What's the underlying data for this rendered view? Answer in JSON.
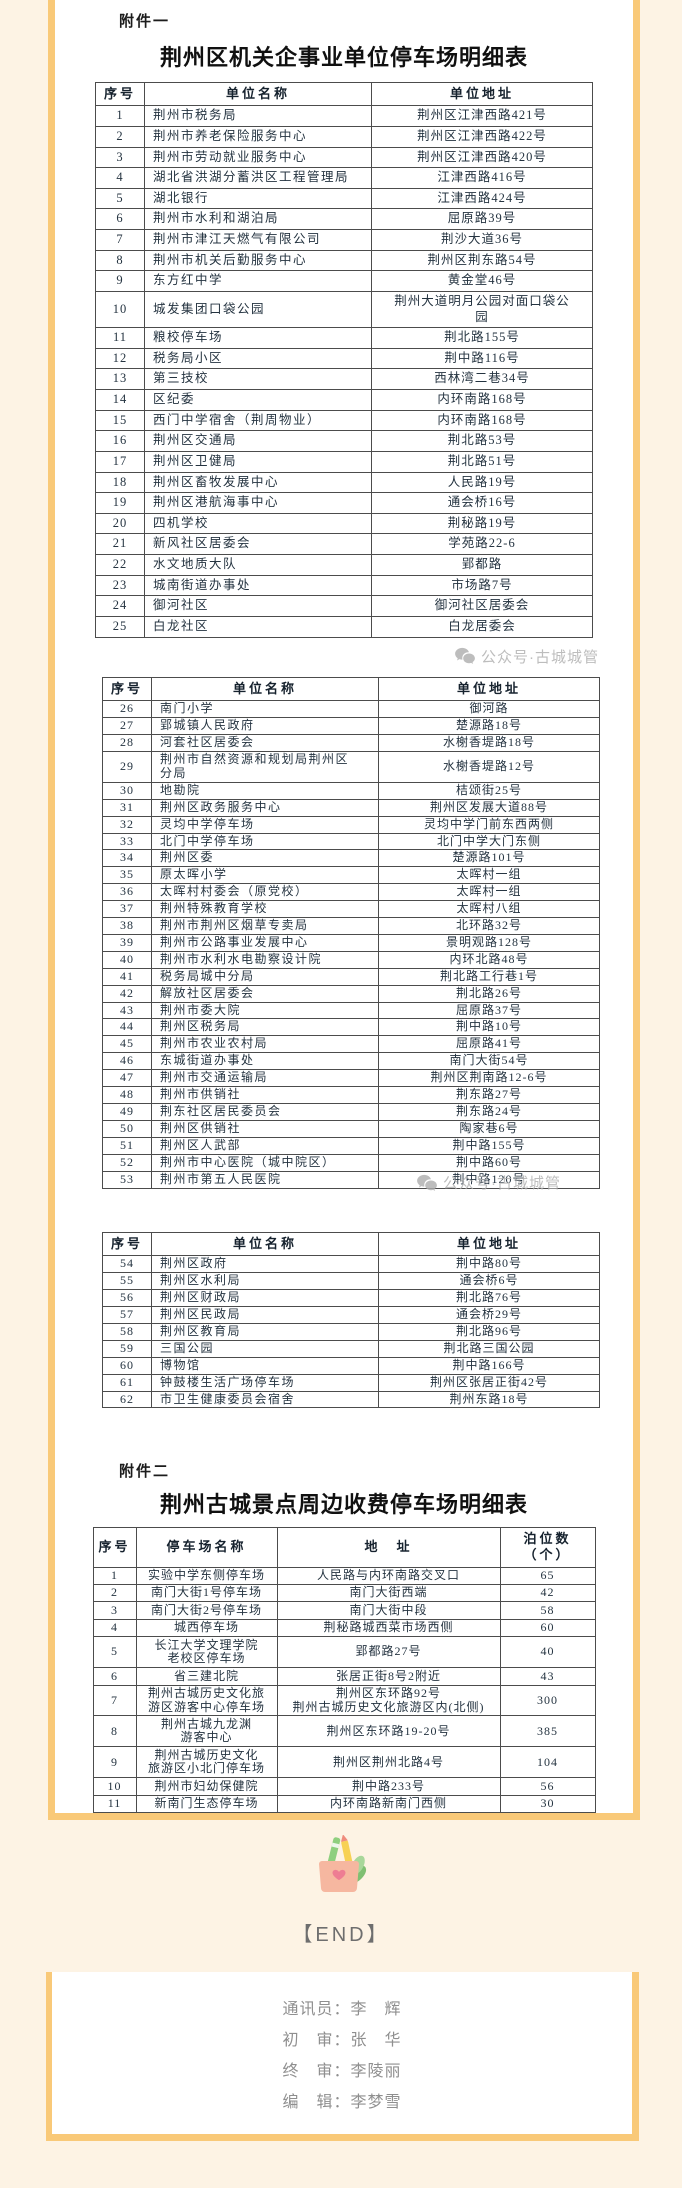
{
  "page": {
    "attachment1_label": "附件一",
    "attachment2_label": "附件二",
    "watermark_text": "公众号·古城城管",
    "watermark_icon": "wechat-icon",
    "end_marker": "【END】",
    "end_icon": "pencil-cup-icon",
    "credits": {
      "line1": "通讯员：李　辉",
      "line2": "初　审：张　华",
      "line3": "终　审：李陵丽",
      "line4": "编　辑：李梦雪"
    },
    "colors": {
      "accent_yellow": "#f9c978",
      "cream_background": "#fdf3e4",
      "card_background": "#ffffff",
      "table_border": "#4c4c4c",
      "body_text": "#243340",
      "watermark_gray": "#adadad"
    }
  },
  "unit_table": {
    "title": "荆州区机关企事业单位停车场明细表",
    "headers": [
      "序号",
      "单位名称",
      "单位地址"
    ],
    "segments": [
      {
        "rows": [
          {
            "no": "1",
            "name": "荆州市税务局",
            "addr": "荆州区江津西路421号"
          },
          {
            "no": "2",
            "name": "荆州市养老保险服务中心",
            "addr": "荆州区江津西路422号"
          },
          {
            "no": "3",
            "name": "荆州市劳动就业服务中心",
            "addr": "荆州区江津西路420号"
          },
          {
            "no": "4",
            "name": "湖北省洪湖分蓄洪区工程管理局",
            "addr": "江津西路416号"
          },
          {
            "no": "5",
            "name": "湖北银行",
            "addr": "江津西路424号"
          },
          {
            "no": "6",
            "name": "荆州市水利和湖泊局",
            "addr": "屈原路39号"
          },
          {
            "no": "7",
            "name": "荆州市津江天燃气有限公司",
            "addr": "荆沙大道36号"
          },
          {
            "no": "8",
            "name": "荆州市机关后勤服务中心",
            "addr": "荆州区荆东路54号"
          },
          {
            "no": "9",
            "name": "东方红中学",
            "addr": "黄金堂46号"
          },
          {
            "no": "10",
            "name": "城发集团口袋公园",
            "addr": "荆州大道明月公园对面口袋公\n园"
          },
          {
            "no": "11",
            "name": "粮校停车场",
            "addr": "荆北路155号"
          },
          {
            "no": "12",
            "name": "税务局小区",
            "addr": "荆中路116号"
          },
          {
            "no": "13",
            "name": "第三技校",
            "addr": "西林湾二巷34号"
          },
          {
            "no": "14",
            "name": "区纪委",
            "addr": "内环南路168号"
          },
          {
            "no": "15",
            "name": "西门中学宿舍（荆周物业）",
            "addr": "内环南路168号"
          },
          {
            "no": "16",
            "name": "荆州区交通局",
            "addr": "荆北路53号"
          },
          {
            "no": "17",
            "name": "荆州区卫健局",
            "addr": "荆北路51号"
          },
          {
            "no": "18",
            "name": "荆州区畜牧发展中心",
            "addr": "人民路19号"
          },
          {
            "no": "19",
            "name": "荆州区港航海事中心",
            "addr": "通会桥16号"
          },
          {
            "no": "20",
            "name": "四机学校",
            "addr": "荆秘路19号"
          },
          {
            "no": "21",
            "name": "新风社区居委会",
            "addr": "学苑路22-6"
          },
          {
            "no": "22",
            "name": "水文地质大队",
            "addr": "郢都路"
          },
          {
            "no": "23",
            "name": "城南街道办事处",
            "addr": "市场路7号"
          },
          {
            "no": "24",
            "name": "御河社区",
            "addr": "御河社区居委会"
          },
          {
            "no": "25",
            "name": "白龙社区",
            "addr": "白龙居委会"
          }
        ]
      },
      {
        "rows": [
          {
            "no": "26",
            "name": "南门小学",
            "addr": "御河路"
          },
          {
            "no": "27",
            "name": "郢城镇人民政府",
            "addr": "楚源路18号"
          },
          {
            "no": "28",
            "name": "河套社区居委会",
            "addr": "水榭香堤路18号"
          },
          {
            "no": "29",
            "name": "荆州市自然资源和规划局荆州区\n分局",
            "addr": "水榭香堤路12号"
          },
          {
            "no": "30",
            "name": "地勘院",
            "addr": "桔颂街25号"
          },
          {
            "no": "31",
            "name": "荆州区政务服务中心",
            "addr": "荆州区发展大道88号"
          },
          {
            "no": "32",
            "name": "灵均中学停车场",
            "addr": "灵均中学门前东西两侧"
          },
          {
            "no": "33",
            "name": "北门中学停车场",
            "addr": "北门中学大门东侧"
          },
          {
            "no": "34",
            "name": "荆州区委",
            "addr": "楚源路101号"
          },
          {
            "no": "35",
            "name": "原太晖小学",
            "addr": "太晖村一组"
          },
          {
            "no": "36",
            "name": "太晖村村委会（原党校）",
            "addr": "太晖村一组"
          },
          {
            "no": "37",
            "name": "荆州特殊教育学校",
            "addr": "太晖村八组"
          },
          {
            "no": "38",
            "name": "荆州市荆州区烟草专卖局",
            "addr": "北环路32号"
          },
          {
            "no": "39",
            "name": "荆州市公路事业发展中心",
            "addr": "景明观路128号"
          },
          {
            "no": "40",
            "name": "荆州市水利水电勘察设计院",
            "addr": "内环北路48号"
          },
          {
            "no": "41",
            "name": "税务局城中分局",
            "addr": "荆北路工行巷1号"
          },
          {
            "no": "42",
            "name": "解放社区居委会",
            "addr": "荆北路26号"
          },
          {
            "no": "43",
            "name": "荆州市委大院",
            "addr": "屈原路37号"
          },
          {
            "no": "44",
            "name": "荆州区税务局",
            "addr": "荆中路10号"
          },
          {
            "no": "45",
            "name": "荆州市农业农村局",
            "addr": "屈原路41号"
          },
          {
            "no": "46",
            "name": "东城街道办事处",
            "addr": "南门大街54号"
          },
          {
            "no": "47",
            "name": "荆州市交通运输局",
            "addr": "荆州区荆南路12-6号"
          },
          {
            "no": "48",
            "name": "荆州市供销社",
            "addr": "荆东路27号"
          },
          {
            "no": "49",
            "name": "荆东社区居民委员会",
            "addr": "荆东路24号"
          },
          {
            "no": "50",
            "name": "荆州区供销社",
            "addr": "陶家巷6号"
          },
          {
            "no": "51",
            "name": "荆州区人武部",
            "addr": "荆中路155号"
          },
          {
            "no": "52",
            "name": "荆州市中心医院（城中院区）",
            "addr": "荆中路60号"
          },
          {
            "no": "53",
            "name": "荆州市第五人民医院",
            "addr": "荆中路120号"
          }
        ]
      },
      {
        "rows": [
          {
            "no": "54",
            "name": "荆州区政府",
            "addr": "荆中路80号"
          },
          {
            "no": "55",
            "name": "荆州区水利局",
            "addr": "通会桥6号"
          },
          {
            "no": "56",
            "name": "荆州区财政局",
            "addr": "荆北路76号"
          },
          {
            "no": "57",
            "name": "荆州区民政局",
            "addr": "通会桥29号"
          },
          {
            "no": "58",
            "name": "荆州区教育局",
            "addr": "荆北路96号"
          },
          {
            "no": "59",
            "name": "三国公园",
            "addr": "荆北路三国公园"
          },
          {
            "no": "60",
            "name": "博物馆",
            "addr": "荆中路166号"
          },
          {
            "no": "61",
            "name": "钟鼓楼生活广场停车场",
            "addr": "荆州区张居正街42号"
          },
          {
            "no": "62",
            "name": "市卫生健康委员会宿舍",
            "addr": "荆州东路18号"
          }
        ]
      }
    ]
  },
  "paid_table": {
    "title": "荆州古城景点周边收费停车场明细表",
    "headers": [
      "序号",
      "停车场名称",
      "地　址",
      "泊位数\n（个）"
    ],
    "rows": [
      {
        "no": "1",
        "name": "实验中学东侧停车场",
        "addr": "人民路与内环南路交叉口",
        "spots": "65"
      },
      {
        "no": "2",
        "name": "南门大街1号停车场",
        "addr": "南门大街西端",
        "spots": "42"
      },
      {
        "no": "3",
        "name": "南门大街2号停车场",
        "addr": "南门大街中段",
        "spots": "58"
      },
      {
        "no": "4",
        "name": "城西停车场",
        "addr": "荆秘路城西菜市场西侧",
        "spots": "60"
      },
      {
        "no": "5",
        "name": "长江大学文理学院\n老校区停车场",
        "addr": "郢都路27号",
        "spots": "40"
      },
      {
        "no": "6",
        "name": "省三建北院",
        "addr": "张居正街8号2附近",
        "spots": "43"
      },
      {
        "no": "7",
        "name": "荆州古城历史文化旅\n游区游客中心停车场",
        "addr": "荆州区东环路92号\n荆州古城历史文化旅游区内(北侧)",
        "spots": "300"
      },
      {
        "no": "8",
        "name": "荆州古城九龙渊\n游客中心",
        "addr": "荆州区东环路19-20号",
        "spots": "385"
      },
      {
        "no": "9",
        "name": "荆州古城历史文化\n旅游区小北门停车场",
        "addr": "荆州区荆州北路4号",
        "spots": "104"
      },
      {
        "no": "10",
        "name": "荆州市妇幼保健院",
        "addr": "荆中路233号",
        "spots": "56"
      },
      {
        "no": "11",
        "name": "新南门生态停车场",
        "addr": "内环南路新南门西侧",
        "spots": "30"
      }
    ]
  }
}
